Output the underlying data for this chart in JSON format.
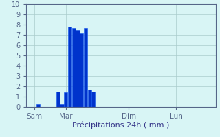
{
  "bar_data": [
    [
      1.5,
      0.3
    ],
    [
      4.0,
      1.5
    ],
    [
      4.5,
      0.3
    ],
    [
      5.0,
      1.4
    ],
    [
      5.5,
      7.8
    ],
    [
      6.0,
      7.7
    ],
    [
      6.5,
      7.5
    ],
    [
      7.0,
      7.2
    ],
    [
      7.5,
      7.7
    ],
    [
      8.0,
      1.7
    ],
    [
      8.5,
      1.5
    ]
  ],
  "bar_width": 0.45,
  "ylim": [
    0,
    10
  ],
  "yticks": [
    0,
    1,
    2,
    3,
    4,
    5,
    6,
    7,
    8,
    9,
    10
  ],
  "xlabel": "Précipitations 24h ( mm )",
  "xlabel_fontsize": 8,
  "xtick_labels": [
    "Sam",
    "Mar",
    "Dim",
    "Lun"
  ],
  "xtick_positions": [
    1.0,
    5.0,
    13.0,
    19.0
  ],
  "bar_color": "#0033cc",
  "bar_edge_color": "#1155ee",
  "background_color": "#d8f5f5",
  "grid_color": "#aacccc",
  "axis_color": "#556688",
  "tick_color": "#333388",
  "xlim": [
    0,
    24
  ],
  "ytick_fontsize": 7,
  "xtick_fontsize": 7.5
}
